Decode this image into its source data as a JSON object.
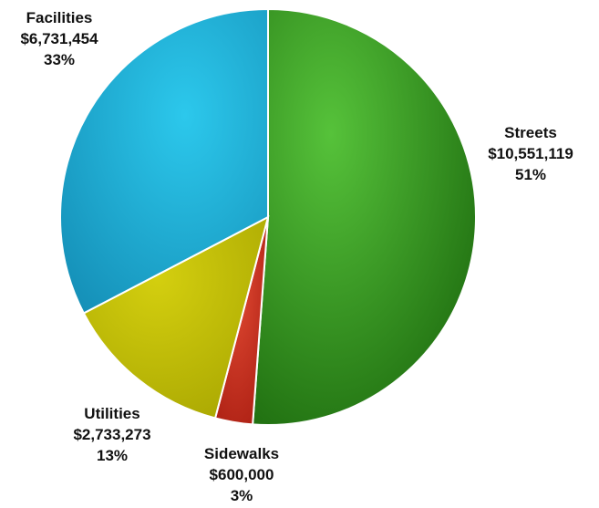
{
  "chart_data": {
    "type": "pie",
    "title": "",
    "start_angle_deg": 0,
    "direction": "clockwise",
    "slices": [
      {
        "name": "Streets",
        "value": 10551119,
        "value_label": "$10,551,119",
        "percent_label": "51%",
        "color": "#2e8b1a"
      },
      {
        "name": "Sidewalks",
        "value": 600000,
        "value_label": "$600,000",
        "percent_label": "3%",
        "color": "#c0281c"
      },
      {
        "name": "Utilities",
        "value": 2733273,
        "value_label": "$2,733,273",
        "percent_label": "13%",
        "color": "#b8b800"
      },
      {
        "name": "Facilities",
        "value": 6731454,
        "value_label": "$6,731,454",
        "percent_label": "33%",
        "color": "#1fb0d6"
      }
    ]
  }
}
